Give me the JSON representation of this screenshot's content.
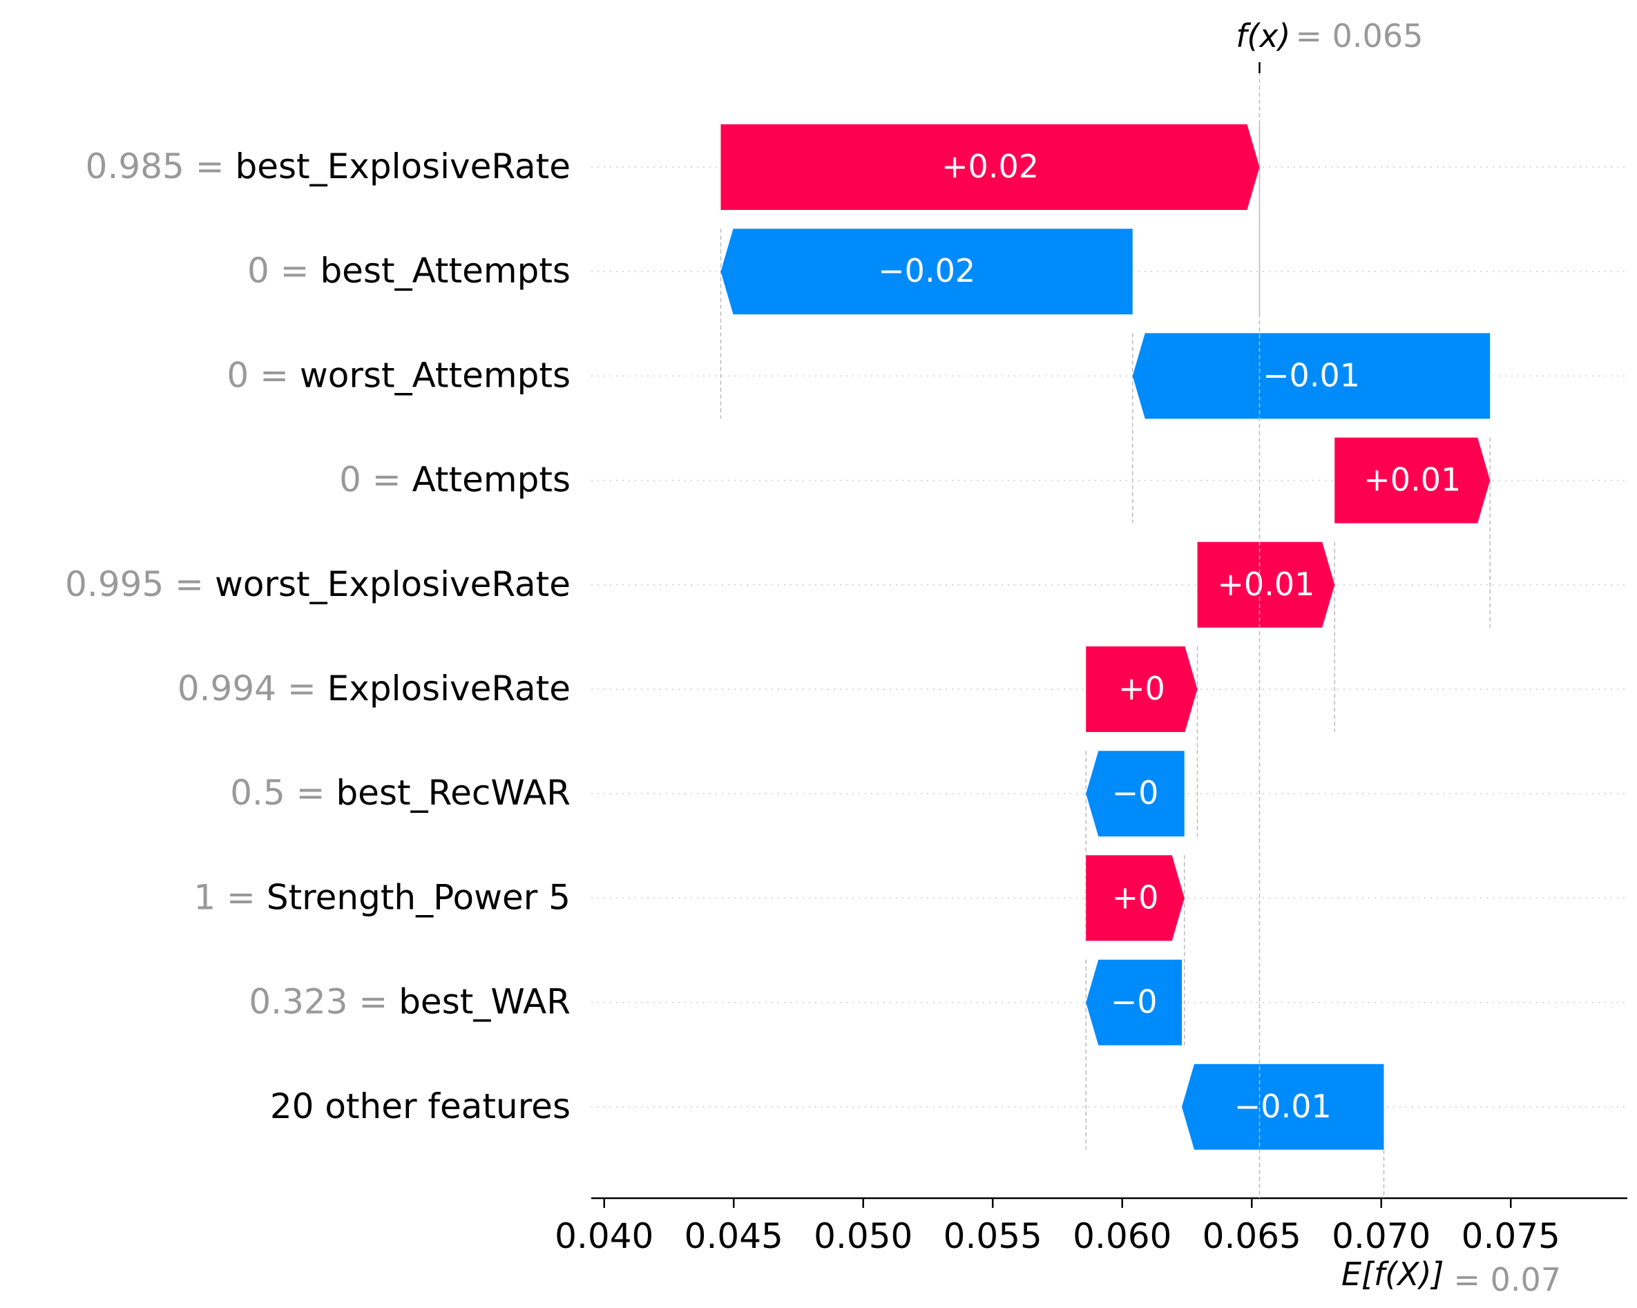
{
  "chart_data": {
    "type": "bar",
    "subtype": "waterfall",
    "f_x_label": "f(x)",
    "f_x_value": "0.065",
    "f_x": 0.0653,
    "expected_label": "E[f(X)]",
    "expected_value_text": "0.07",
    "expected_value": 0.0701,
    "xlim": [
      0.0395,
      0.0795
    ],
    "xticks": [
      "0.040",
      "0.045",
      "0.050",
      "0.055",
      "0.060",
      "0.065",
      "0.070",
      "0.075"
    ],
    "xtick_values": [
      0.04,
      0.045,
      0.05,
      0.055,
      0.06,
      0.065,
      0.07,
      0.075
    ],
    "grid": "horizontal dotted per row",
    "colors": {
      "positive": "#ff0051",
      "negative": "#008bfb",
      "value_text": "#999999"
    },
    "rows": [
      {
        "value": "0.985",
        "name": "best_ExplosiveRate",
        "label": "+0.02",
        "start": 0.0445,
        "end": 0.0653
      },
      {
        "value": "0",
        "name": "best_Attempts",
        "label": "−0.02",
        "start": 0.0604,
        "end": 0.0445
      },
      {
        "value": "0",
        "name": "worst_Attempts",
        "label": "−0.01",
        "start": 0.0742,
        "end": 0.0604
      },
      {
        "value": "0",
        "name": "Attempts",
        "label": "+0.01",
        "start": 0.0682,
        "end": 0.0742
      },
      {
        "value": "0.995",
        "name": "worst_ExplosiveRate",
        "label": "+0.01",
        "start": 0.0629,
        "end": 0.0682
      },
      {
        "value": "0.994",
        "name": "ExplosiveRate",
        "label": "+0",
        "start": 0.0586,
        "end": 0.0629
      },
      {
        "value": "0.5",
        "name": "best_RecWAR",
        "label": "−0",
        "start": 0.0624,
        "end": 0.0586
      },
      {
        "value": "1",
        "name": "Strength_Power 5",
        "label": "+0",
        "start": 0.0586,
        "end": 0.0624
      },
      {
        "value": "0.323",
        "name": "best_WAR",
        "label": "−0",
        "start": 0.0623,
        "end": 0.0586
      },
      {
        "value": "",
        "name": "20 other features",
        "label": "−0.01",
        "start": 0.0701,
        "end": 0.0623
      }
    ]
  }
}
